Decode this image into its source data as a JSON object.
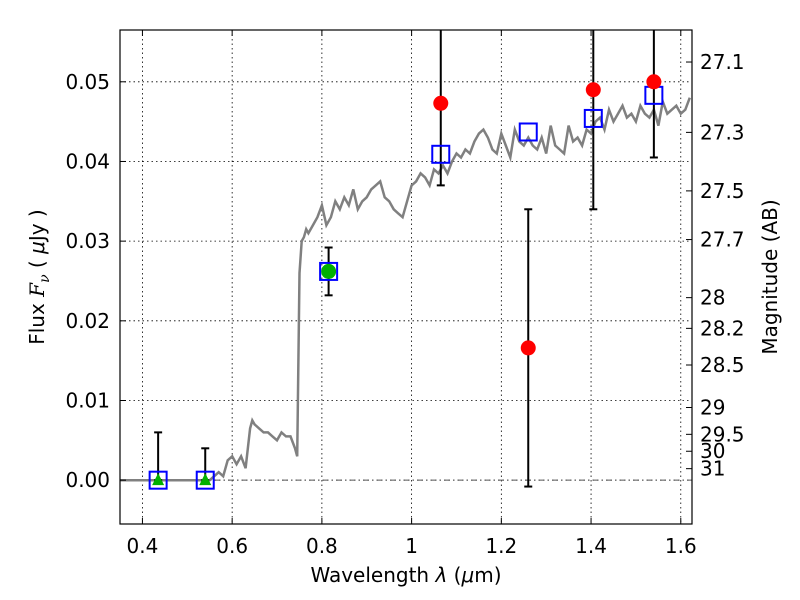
{
  "chart_data": {
    "type": "scatter",
    "xlabel_prefix": "Wavelength ",
    "xlabel_lambda": "λ",
    "xlabel_units": " (",
    "xlabel_mu": "μ",
    "xlabel_tail": "m)",
    "ylabel_prefix": "Flux ",
    "ylabel_F": "F",
    "ylabel_sub": "ν",
    "ylabel_units": " ( ",
    "ylabel_mu": "μ",
    "ylabel_tail": "Jy )",
    "y2label": "Magnitude (AB)",
    "xlim": [
      0.35,
      1.625
    ],
    "ylim": [
      -0.0055,
      0.0565
    ],
    "xticks": [
      0.4,
      0.6,
      0.8,
      1,
      1.2,
      1.4,
      1.6
    ],
    "xtick_labels": [
      "0.4",
      "0.6",
      "0.8",
      "1",
      "1.2",
      "1.4",
      "1.6"
    ],
    "yticks": [
      0.0,
      0.01,
      0.02,
      0.03,
      0.04,
      0.05
    ],
    "ytick_labels": [
      "0.00",
      "0.01",
      "0.02",
      "0.03",
      "0.04",
      "0.05"
    ],
    "mag_ticks": [
      27.1,
      27.3,
      27.5,
      27.7,
      28,
      28.2,
      28.5,
      29,
      29.5,
      30,
      31
    ],
    "mag_tick_labels": [
      "27.1",
      "27.3",
      "27.5",
      "27.7",
      "28",
      "28.2",
      "28.5",
      "29",
      "29.5",
      "30",
      "31"
    ],
    "grid": true,
    "colors": {
      "model": "#808080",
      "model_phot": "#0000ff",
      "detection": "#00b000",
      "upper_limit": "#00b000",
      "irac_points": "#ff0000",
      "errorbar": "#000000",
      "zero_line": "#555555"
    },
    "model_sed": {
      "x": [
        0.35,
        0.4,
        0.45,
        0.5,
        0.55,
        0.56,
        0.57,
        0.58,
        0.59,
        0.6,
        0.61,
        0.62,
        0.63,
        0.64,
        0.645,
        0.65,
        0.66,
        0.67,
        0.68,
        0.69,
        0.7,
        0.71,
        0.72,
        0.73,
        0.74,
        0.745,
        0.75,
        0.755,
        0.76,
        0.765,
        0.77,
        0.78,
        0.79,
        0.8,
        0.81,
        0.82,
        0.83,
        0.84,
        0.85,
        0.86,
        0.87,
        0.88,
        0.89,
        0.9,
        0.91,
        0.92,
        0.93,
        0.94,
        0.95,
        0.96,
        0.97,
        0.98,
        0.99,
        1.0,
        1.01,
        1.02,
        1.03,
        1.04,
        1.05,
        1.06,
        1.07,
        1.08,
        1.09,
        1.1,
        1.11,
        1.12,
        1.13,
        1.14,
        1.15,
        1.16,
        1.17,
        1.18,
        1.19,
        1.2,
        1.21,
        1.22,
        1.23,
        1.24,
        1.25,
        1.26,
        1.27,
        1.28,
        1.29,
        1.3,
        1.31,
        1.32,
        1.33,
        1.34,
        1.35,
        1.36,
        1.37,
        1.38,
        1.39,
        1.4,
        1.41,
        1.42,
        1.43,
        1.44,
        1.45,
        1.46,
        1.47,
        1.48,
        1.49,
        1.5,
        1.51,
        1.52,
        1.53,
        1.54,
        1.55,
        1.56,
        1.57,
        1.58,
        1.59,
        1.6,
        1.61,
        1.62
      ],
      "y": [
        0.0,
        0.0,
        0.0,
        0.0,
        0.0,
        0.0005,
        0.001,
        0.0005,
        0.0025,
        0.003,
        0.002,
        0.003,
        0.0015,
        0.0065,
        0.0075,
        0.007,
        0.0065,
        0.006,
        0.006,
        0.0055,
        0.005,
        0.006,
        0.0055,
        0.0055,
        0.004,
        0.003,
        0.026,
        0.03,
        0.0305,
        0.0315,
        0.031,
        0.032,
        0.033,
        0.0345,
        0.032,
        0.033,
        0.035,
        0.034,
        0.0355,
        0.0345,
        0.0365,
        0.034,
        0.035,
        0.0355,
        0.0365,
        0.037,
        0.0375,
        0.0355,
        0.035,
        0.034,
        0.0335,
        0.033,
        0.035,
        0.037,
        0.0375,
        0.0385,
        0.038,
        0.037,
        0.039,
        0.0385,
        0.0395,
        0.0385,
        0.04,
        0.041,
        0.0405,
        0.0415,
        0.041,
        0.0425,
        0.0435,
        0.044,
        0.043,
        0.0415,
        0.041,
        0.0435,
        0.042,
        0.0405,
        0.044,
        0.0425,
        0.042,
        0.043,
        0.042,
        0.0415,
        0.043,
        0.041,
        0.0445,
        0.042,
        0.0415,
        0.041,
        0.0445,
        0.0425,
        0.043,
        0.042,
        0.044,
        0.0435,
        0.045,
        0.0455,
        0.044,
        0.0465,
        0.045,
        0.046,
        0.047,
        0.0455,
        0.046,
        0.045,
        0.047,
        0.046,
        0.0455,
        0.0465,
        0.0445,
        0.0475,
        0.046,
        0.0465,
        0.047,
        0.046,
        0.0465,
        0.048
      ]
    },
    "model_photometry": {
      "x": [
        0.435,
        0.54,
        0.815,
        1.065,
        1.26,
        1.405,
        1.54
      ],
      "y": [
        0.0,
        0.0,
        0.0262,
        0.0409,
        0.0437,
        0.0454,
        0.0483
      ]
    },
    "upper_limits": {
      "x": [
        0.435,
        0.54
      ],
      "y": [
        0.0,
        0.0
      ],
      "err_top": [
        0.006,
        0.004
      ]
    },
    "detections": {
      "x": [
        0.815
      ],
      "y": [
        0.0262
      ],
      "err": [
        0.003
      ]
    },
    "red_points": {
      "x": [
        1.065,
        1.26,
        1.405,
        1.54
      ],
      "y": [
        0.0473,
        0.0166,
        0.049,
        0.05
      ],
      "err_low": [
        0.037,
        -0.0008,
        0.034,
        0.0405
      ],
      "err_high": [
        0.07,
        0.034,
        0.07,
        0.07
      ]
    }
  }
}
